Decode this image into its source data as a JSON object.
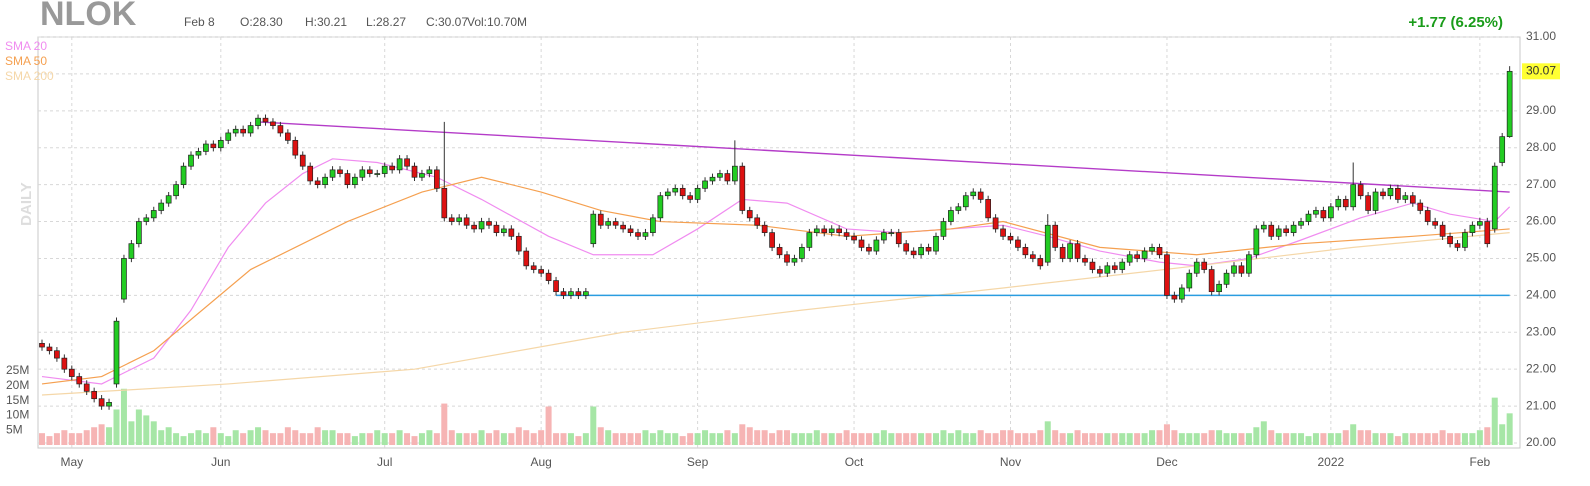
{
  "chart_data": {
    "type": "candlestick",
    "title": "NLOK",
    "date": "Feb 8",
    "ohlc_text": [
      "O:28.30",
      "H:30.21",
      "L:28.27",
      "C:30.07"
    ],
    "volume_text": "Vol:10.70M",
    "change_text": "+1.77 (6.25%)",
    "timeframe": "DAILY",
    "up_color": "#22cc22",
    "down_color": "#dd1111",
    "open": [
      22.7,
      22.6,
      22.5,
      22.3,
      22.0,
      21.8,
      21.6,
      21.4,
      21.2,
      21.0,
      21.6,
      23.9,
      25.0,
      25.4,
      26.0,
      26.1,
      26.3,
      26.5,
      26.7,
      27.0,
      27.5,
      27.8,
      27.9,
      28.1,
      28.0,
      28.2,
      28.4,
      28.5,
      28.4,
      28.6,
      28.8,
      28.7,
      28.6,
      28.4,
      28.2,
      27.8,
      27.5,
      27.1,
      27.0,
      27.2,
      27.4,
      27.3,
      27.0,
      27.2,
      27.4,
      27.3,
      27.3,
      27.5,
      27.4,
      27.7,
      27.5,
      27.2,
      27.3,
      27.4,
      26.9,
      26.1,
      26.0,
      26.1,
      25.9,
      25.8,
      26.0,
      25.9,
      25.7,
      25.8,
      25.6,
      25.2,
      24.8,
      24.7,
      24.6,
      24.4,
      24.1,
      24.0,
      24.1,
      24.0,
      25.4,
      26.2,
      25.9,
      26.0,
      25.9,
      25.8,
      25.7,
      25.6,
      25.7,
      26.1,
      26.7,
      26.8,
      26.9,
      26.7,
      26.6,
      26.9,
      27.1,
      27.2,
      27.3,
      27.1,
      27.5,
      26.3,
      26.1,
      25.9,
      25.7,
      25.3,
      25.1,
      24.9,
      25.0,
      25.3,
      25.7,
      25.8,
      25.7,
      25.8,
      25.7,
      25.6,
      25.5,
      25.3,
      25.2,
      25.5,
      25.7,
      25.7,
      25.4,
      25.2,
      25.1,
      25.3,
      25.2,
      25.6,
      26.0,
      26.3,
      26.4,
      26.7,
      26.8,
      26.6,
      26.1,
      25.8,
      25.6,
      25.5,
      25.3,
      25.1,
      25.0,
      24.9,
      25.9,
      25.3,
      25.0,
      25.4,
      25.0,
      24.9,
      24.7,
      24.6,
      24.8,
      24.7,
      24.9,
      25.1,
      25.0,
      25.2,
      25.3,
      25.1,
      24.0,
      23.9,
      24.2,
      24.6,
      24.9,
      24.7,
      24.1,
      24.3,
      24.6,
      24.8,
      24.6,
      25.1,
      25.8,
      25.9,
      25.6,
      25.8,
      25.7,
      25.9,
      26.0,
      26.2,
      26.3,
      26.1,
      26.4,
      26.6,
      26.4,
      27.0,
      26.7,
      26.3,
      26.8,
      26.7,
      26.9,
      26.6,
      26.7,
      26.5,
      26.3,
      26.0,
      25.9,
      25.6,
      25.4,
      25.3,
      25.7,
      25.9,
      26.0,
      25.8,
      27.6,
      28.3
    ],
    "high": [
      22.8,
      22.7,
      22.6,
      22.4,
      22.1,
      21.9,
      21.7,
      21.5,
      21.3,
      21.2,
      23.4,
      25.1,
      25.5,
      26.1,
      26.2,
      26.4,
      26.6,
      26.8,
      27.1,
      27.6,
      27.9,
      28.0,
      28.2,
      28.2,
      28.3,
      28.5,
      28.6,
      28.6,
      28.7,
      28.9,
      28.9,
      28.8,
      28.7,
      28.5,
      28.3,
      27.9,
      27.6,
      27.2,
      27.3,
      27.5,
      27.5,
      27.4,
      27.3,
      27.5,
      27.5,
      27.4,
      27.6,
      27.6,
      27.8,
      27.8,
      27.6,
      27.4,
      27.5,
      27.5,
      28.7,
      26.2,
      26.2,
      26.2,
      26.0,
      26.1,
      26.1,
      26.0,
      25.9,
      25.9,
      25.7,
      25.3,
      24.9,
      24.8,
      24.7,
      24.5,
      24.2,
      24.2,
      24.2,
      24.2,
      26.3,
      26.3,
      26.1,
      26.1,
      26.0,
      25.9,
      25.8,
      25.8,
      26.2,
      26.8,
      26.9,
      27.0,
      27.0,
      26.8,
      27.0,
      27.2,
      27.3,
      27.4,
      27.4,
      28.2,
      27.6,
      26.4,
      26.2,
      26.0,
      25.8,
      25.4,
      25.2,
      25.1,
      25.4,
      25.8,
      25.9,
      25.9,
      25.9,
      25.9,
      25.8,
      25.7,
      25.6,
      25.4,
      25.6,
      25.8,
      25.8,
      25.8,
      25.5,
      25.3,
      25.4,
      25.4,
      25.7,
      26.1,
      26.4,
      26.5,
      26.8,
      26.9,
      26.9,
      26.7,
      26.2,
      25.9,
      25.7,
      25.6,
      25.4,
      25.2,
      25.1,
      26.2,
      26.0,
      25.4,
      25.5,
      25.5,
      25.1,
      25.0,
      24.8,
      24.9,
      24.9,
      25.0,
      25.2,
      25.2,
      25.3,
      25.4,
      25.4,
      25.2,
      24.1,
      24.3,
      24.7,
      25.0,
      25.0,
      24.8,
      24.4,
      24.7,
      24.9,
      24.9,
      25.2,
      25.9,
      26.0,
      26.0,
      25.9,
      25.9,
      26.0,
      26.1,
      26.3,
      26.4,
      26.4,
      26.5,
      26.7,
      26.7,
      27.6,
      27.1,
      26.8,
      26.9,
      26.9,
      27.0,
      27.0,
      26.8,
      26.8,
      26.6,
      26.4,
      26.1,
      26.0,
      25.7,
      25.5,
      25.8,
      26.0,
      26.1,
      26.1,
      27.6,
      28.4,
      30.21
    ],
    "low": [
      22.5,
      22.4,
      22.2,
      21.9,
      21.7,
      21.5,
      21.3,
      21.1,
      20.9,
      20.9,
      21.5,
      23.8,
      24.9,
      25.3,
      25.9,
      26.0,
      26.2,
      26.4,
      26.6,
      26.9,
      27.4,
      27.7,
      27.8,
      27.9,
      27.9,
      28.1,
      28.3,
      28.3,
      28.3,
      28.5,
      28.6,
      28.5,
      28.3,
      28.1,
      27.7,
      27.4,
      27.0,
      26.9,
      26.9,
      27.1,
      27.2,
      26.9,
      26.9,
      27.1,
      27.2,
      27.2,
      27.2,
      27.3,
      27.3,
      27.4,
      27.1,
      27.1,
      27.2,
      26.8,
      26.0,
      25.9,
      25.9,
      25.8,
      25.7,
      25.7,
      25.8,
      25.6,
      25.6,
      25.5,
      25.1,
      24.7,
      24.6,
      24.5,
      24.3,
      24.0,
      23.9,
      23.9,
      23.9,
      23.9,
      25.3,
      25.8,
      25.8,
      25.8,
      25.7,
      25.6,
      25.5,
      25.5,
      25.6,
      26.0,
      26.6,
      26.7,
      26.6,
      26.5,
      26.5,
      26.8,
      27.0,
      27.1,
      27.0,
      27.0,
      26.2,
      26.0,
      25.8,
      25.6,
      25.2,
      25.0,
      24.8,
      24.8,
      24.9,
      25.2,
      25.6,
      25.6,
      25.6,
      25.6,
      25.5,
      25.4,
      25.2,
      25.1,
      25.1,
      25.4,
      25.6,
      25.3,
      25.1,
      25.0,
      25.0,
      25.1,
      25.1,
      25.5,
      25.9,
      26.2,
      26.3,
      26.6,
      26.5,
      26.0,
      25.7,
      25.5,
      25.4,
      25.2,
      25.0,
      24.9,
      24.7,
      24.8,
      25.2,
      24.9,
      24.9,
      24.9,
      24.8,
      24.6,
      24.5,
      24.5,
      24.6,
      24.6,
      24.8,
      24.9,
      24.9,
      25.1,
      25.0,
      23.9,
      23.8,
      23.8,
      24.1,
      24.5,
      24.6,
      24.0,
      24.0,
      24.2,
      24.5,
      24.5,
      24.5,
      25.0,
      25.7,
      25.5,
      25.5,
      25.6,
      25.6,
      25.8,
      25.9,
      26.1,
      26.0,
      26.0,
      26.3,
      26.3,
      26.3,
      26.6,
      26.2,
      26.2,
      26.6,
      26.6,
      26.5,
      26.5,
      26.4,
      26.2,
      25.9,
      25.8,
      25.5,
      25.3,
      25.2,
      25.2,
      25.6,
      25.8,
      25.3,
      25.7,
      27.5,
      28.27
    ],
    "close": [
      22.6,
      22.5,
      22.3,
      22.0,
      21.8,
      21.6,
      21.4,
      21.2,
      21.0,
      21.1,
      23.3,
      25.0,
      25.4,
      26.0,
      26.1,
      26.3,
      26.5,
      26.7,
      27.0,
      27.5,
      27.8,
      27.9,
      28.1,
      28.0,
      28.2,
      28.4,
      28.5,
      28.4,
      28.6,
      28.8,
      28.7,
      28.6,
      28.4,
      28.2,
      27.8,
      27.5,
      27.1,
      27.0,
      27.2,
      27.4,
      27.3,
      27.0,
      27.2,
      27.4,
      27.3,
      27.3,
      27.5,
      27.4,
      27.7,
      27.5,
      27.2,
      27.3,
      27.4,
      26.9,
      26.1,
      26.0,
      26.1,
      25.9,
      25.8,
      26.0,
      25.9,
      25.7,
      25.8,
      25.6,
      25.2,
      24.8,
      24.7,
      24.6,
      24.4,
      24.1,
      24.0,
      24.1,
      24.0,
      24.1,
      26.2,
      25.9,
      26.0,
      25.9,
      25.8,
      25.7,
      25.6,
      25.7,
      26.1,
      26.7,
      26.8,
      26.9,
      26.7,
      26.6,
      26.9,
      27.1,
      27.2,
      27.3,
      27.1,
      27.5,
      26.3,
      26.1,
      25.9,
      25.7,
      25.3,
      25.1,
      24.9,
      25.0,
      25.3,
      25.7,
      25.8,
      25.7,
      25.8,
      25.7,
      25.6,
      25.5,
      25.3,
      25.2,
      25.5,
      25.7,
      25.7,
      25.4,
      25.2,
      25.1,
      25.3,
      25.2,
      25.6,
      26.0,
      26.3,
      26.4,
      26.7,
      26.8,
      26.6,
      26.1,
      25.8,
      25.6,
      25.5,
      25.3,
      25.1,
      25.0,
      24.8,
      25.9,
      25.3,
      25.0,
      25.4,
      25.0,
      24.9,
      24.7,
      24.6,
      24.8,
      24.7,
      24.9,
      25.1,
      25.0,
      25.2,
      25.3,
      25.1,
      24.0,
      23.9,
      24.2,
      24.6,
      24.9,
      24.7,
      24.1,
      24.3,
      24.6,
      24.8,
      24.6,
      25.1,
      25.8,
      25.9,
      25.6,
      25.8,
      25.7,
      25.9,
      26.0,
      26.2,
      26.3,
      26.1,
      26.4,
      26.6,
      26.4,
      27.0,
      26.7,
      26.3,
      26.8,
      26.7,
      26.9,
      26.6,
      26.7,
      26.5,
      26.3,
      26.0,
      25.9,
      25.6,
      25.4,
      25.3,
      25.7,
      25.9,
      26.0,
      25.4,
      27.5,
      28.3,
      30.07
    ],
    "volume": [
      4,
      3,
      4,
      5,
      4,
      4,
      5,
      6,
      7,
      6,
      12,
      19,
      8,
      12,
      10,
      8,
      5,
      6,
      4,
      3,
      4,
      5,
      4,
      6,
      4,
      3,
      5,
      4,
      5,
      6,
      5,
      4,
      4,
      6,
      5,
      4,
      4,
      6,
      5,
      5,
      4,
      4,
      3,
      4,
      4,
      5,
      4,
      4,
      5,
      4,
      3,
      4,
      5,
      4,
      14,
      5,
      4,
      4,
      4,
      5,
      4,
      5,
      4,
      4,
      6,
      5,
      4,
      5,
      13,
      4,
      4,
      4,
      3,
      4,
      13,
      6,
      5,
      4,
      4,
      4,
      4,
      5,
      4,
      5,
      4,
      4,
      3,
      4,
      4,
      5,
      4,
      4,
      5,
      4,
      7,
      6,
      5,
      5,
      4,
      5,
      5,
      4,
      4,
      4,
      5,
      4,
      4,
      4,
      5,
      4,
      4,
      4,
      4,
      5,
      4,
      4,
      4,
      4,
      4,
      4,
      4,
      5,
      4,
      5,
      4,
      4,
      5,
      4,
      4,
      5,
      5,
      4,
      4,
      4,
      5,
      8,
      5,
      4,
      4,
      5,
      4,
      4,
      4,
      4,
      4,
      4,
      4,
      4,
      4,
      5,
      5,
      7,
      5,
      4,
      4,
      4,
      4,
      5,
      5,
      4,
      4,
      4,
      4,
      6,
      8,
      5,
      4,
      4,
      4,
      4,
      3,
      4,
      4,
      4,
      4,
      5,
      7,
      5,
      5,
      4,
      4,
      4,
      3,
      4,
      4,
      4,
      4,
      4,
      5,
      4,
      4,
      4,
      4,
      5,
      6,
      16,
      7,
      10.7
    ],
    "ylim": [
      20,
      31
    ],
    "yticks": [
      {
        "value": 20,
        "label": "20.00"
      },
      {
        "value": 21,
        "label": "21.00"
      },
      {
        "value": 22,
        "label": "22.00"
      },
      {
        "value": 23,
        "label": "23.00"
      },
      {
        "value": 24,
        "label": "24.00"
      },
      {
        "value": 25,
        "label": "25.00"
      },
      {
        "value": 26,
        "label": "26.00"
      },
      {
        "value": 27,
        "label": "27.00"
      },
      {
        "value": 28,
        "label": "28.00"
      },
      {
        "value": 29,
        "label": "29.00"
      },
      {
        "value": 30,
        "label": "30.00"
      },
      {
        "value": 31,
        "label": "31.00"
      }
    ],
    "volume_lim": [
      0,
      30
    ],
    "volume_ticks": [
      {
        "value": 5,
        "label": "5M"
      },
      {
        "value": 10,
        "label": "10M"
      },
      {
        "value": 15,
        "label": "15M"
      },
      {
        "value": 20,
        "label": "20M"
      },
      {
        "value": 25,
        "label": "25M"
      }
    ],
    "xticks": [
      {
        "value": 4,
        "label": "May"
      },
      {
        "value": 24,
        "label": "Jun"
      },
      {
        "value": 46,
        "label": "Jul"
      },
      {
        "value": 67,
        "label": "Aug"
      },
      {
        "value": 88,
        "label": "Sep"
      },
      {
        "value": 109,
        "label": "Oct"
      },
      {
        "value": 130,
        "label": "Nov"
      },
      {
        "value": 151,
        "label": "Dec"
      },
      {
        "value": 173,
        "label": "2022"
      },
      {
        "value": 193,
        "label": "Feb"
      }
    ],
    "grid": true,
    "sma": [
      {
        "name": "SMA 20",
        "color": "#f08cf0",
        "x": [
          0,
          8,
          15,
          20,
          25,
          30,
          35,
          39,
          45,
          53,
          59,
          68,
          74,
          82,
          88,
          94,
          100,
          108,
          115,
          122,
          129,
          135,
          142,
          150,
          155,
          162,
          169,
          177,
          184,
          189,
          195,
          197
        ],
        "values": [
          21.8,
          21.6,
          22.3,
          23.6,
          25.3,
          26.5,
          27.3,
          27.7,
          27.6,
          27.2,
          26.6,
          25.6,
          25.1,
          25.1,
          25.8,
          26.6,
          26.5,
          25.8,
          25.7,
          25.8,
          25.9,
          25.6,
          25.2,
          24.9,
          24.8,
          25.0,
          25.5,
          26.1,
          26.5,
          26.2,
          26.0,
          26.4
        ]
      },
      {
        "name": "SMA 50",
        "color": "#f5a050",
        "x": [
          0,
          8,
          15,
          28,
          41,
          51,
          59,
          67,
          75,
          83,
          96,
          108,
          122,
          129,
          142,
          155,
          169,
          184,
          197
        ],
        "values": [
          21.6,
          21.8,
          22.5,
          24.7,
          26.0,
          26.8,
          27.2,
          26.8,
          26.3,
          26.0,
          25.9,
          25.6,
          25.8,
          26.0,
          25.3,
          25.1,
          25.4,
          25.6,
          25.8
        ]
      },
      {
        "name": "SMA 200",
        "color": "#f5d7a8",
        "x": [
          0,
          25,
          50,
          78,
          102,
          129,
          155,
          176,
          197
        ],
        "values": [
          21.3,
          21.6,
          22.0,
          23.0,
          23.6,
          24.2,
          24.8,
          25.3,
          25.7
        ]
      }
    ],
    "trendlines": [
      {
        "color": "#b43cc8",
        "x": [
          29,
          197
        ],
        "values": [
          28.7,
          26.8
        ]
      },
      {
        "color": "#2a9de0",
        "x": [
          69,
          197
        ],
        "values": [
          24.0,
          24.0
        ]
      }
    ]
  }
}
